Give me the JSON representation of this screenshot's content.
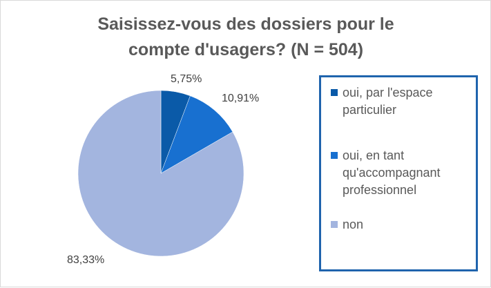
{
  "chart_data": {
    "type": "pie",
    "title_line1": "Saisissez-vous des dossiers pour le",
    "title_line2": "compte d'usagers? (N = 504)",
    "categories": [
      "oui, par l'espace particulier",
      "oui, en tant qu'accompagnant professionnel",
      "non"
    ],
    "values": [
      5.75,
      10.91,
      83.33
    ],
    "labels": [
      "5,75%",
      "10,91%",
      "83,33%"
    ],
    "colors": [
      "#0a5aa8",
      "#1870d0",
      "#a3b5df"
    ],
    "legend_position": "right"
  },
  "legend": {
    "item1_line1": "oui, par l'espace",
    "item1_line2": "particulier",
    "item2_line1": "oui, en tant",
    "item2_line2": "qu'accompagnant",
    "item2_line3": "professionnel",
    "item3_line1": "non"
  }
}
